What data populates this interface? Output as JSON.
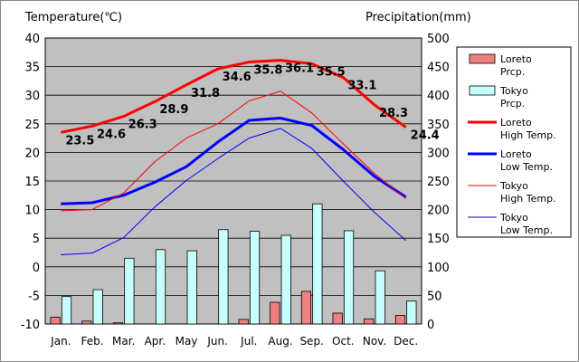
{
  "chart_data": {
    "type": "bar+line",
    "left_axis_label": "Temperature(℃)",
    "right_axis_label": "Precipitation(mm)",
    "categories": [
      "Jan.",
      "Feb.",
      "Mar.",
      "Apr.",
      "May",
      "Jun.",
      "Jul.",
      "Aug.",
      "Sep.",
      "Oct.",
      "Nov.",
      "Dec."
    ],
    "ylim_left": [
      -10,
      40
    ],
    "yticks_left": [
      -10,
      -5,
      0,
      5,
      10,
      15,
      20,
      25,
      30,
      35,
      40
    ],
    "ylim_right": [
      0,
      500
    ],
    "yticks_right": [
      0,
      50,
      100,
      150,
      200,
      250,
      300,
      350,
      400,
      450,
      500
    ],
    "grid": "horizontal",
    "plot_background": "#c0c0c0",
    "legend_position": "right",
    "bar_series": [
      {
        "name": "Loreto Prcp.",
        "color": "#f08080",
        "values": [
          12,
          5,
          2,
          0,
          0,
          0,
          8,
          38,
          57,
          19,
          9,
          15
        ]
      },
      {
        "name": "Tokyo Prcp.",
        "color": "#c8ffff",
        "values": [
          48,
          60,
          115,
          130,
          128,
          165,
          162,
          155,
          210,
          163,
          93,
          40
        ]
      }
    ],
    "line_series": [
      {
        "name": "Loreto High Temp.",
        "color": "#ff0000",
        "width": 3,
        "values": [
          23.5,
          24.6,
          26.3,
          28.9,
          31.8,
          34.6,
          35.8,
          36.1,
          35.5,
          33.1,
          28.3,
          24.4
        ],
        "labels": [
          "23.5",
          "24.6",
          "26.3",
          "28.9",
          "31.8",
          "34.6",
          "35.8",
          "36.1",
          "35.5",
          "33.1",
          "28.3",
          "24.4"
        ]
      },
      {
        "name": "Loreto Low Temp.",
        "color": "#0000ff",
        "width": 3,
        "values": [
          11.0,
          11.2,
          12.5,
          14.8,
          17.5,
          21.8,
          25.6,
          26.0,
          24.7,
          20.5,
          15.8,
          12.2
        ]
      },
      {
        "name": "Tokyo High Temp.",
        "color": "#ff0000",
        "width": 1,
        "values": [
          9.8,
          10.0,
          12.9,
          18.4,
          22.5,
          25.0,
          29.0,
          30.7,
          26.9,
          21.5,
          16.3,
          11.9
        ]
      },
      {
        "name": "Tokyo Low Temp.",
        "color": "#0000ff",
        "width": 1,
        "values": [
          2.1,
          2.4,
          5.1,
          10.5,
          15.1,
          18.9,
          22.5,
          24.2,
          20.7,
          15.0,
          9.5,
          4.6
        ]
      }
    ],
    "legend": [
      {
        "line1": "Loreto",
        "line2": "Prcp.",
        "kind": "bar",
        "color": "#f08080"
      },
      {
        "line1": "Tokyo",
        "line2": "Prcp.",
        "kind": "bar",
        "color": "#c8ffff"
      },
      {
        "line1": "Loreto",
        "line2": "High Temp.",
        "kind": "line",
        "color": "#ff0000",
        "width": 3
      },
      {
        "line1": "Loreto",
        "line2": "Low Temp.",
        "kind": "line",
        "color": "#0000ff",
        "width": 3
      },
      {
        "line1": "Tokyo",
        "line2": "High Temp.",
        "kind": "line",
        "color": "#ff0000",
        "width": 1
      },
      {
        "line1": "Tokyo",
        "line2": "Low Temp.",
        "kind": "line",
        "color": "#0000ff",
        "width": 1
      }
    ]
  }
}
